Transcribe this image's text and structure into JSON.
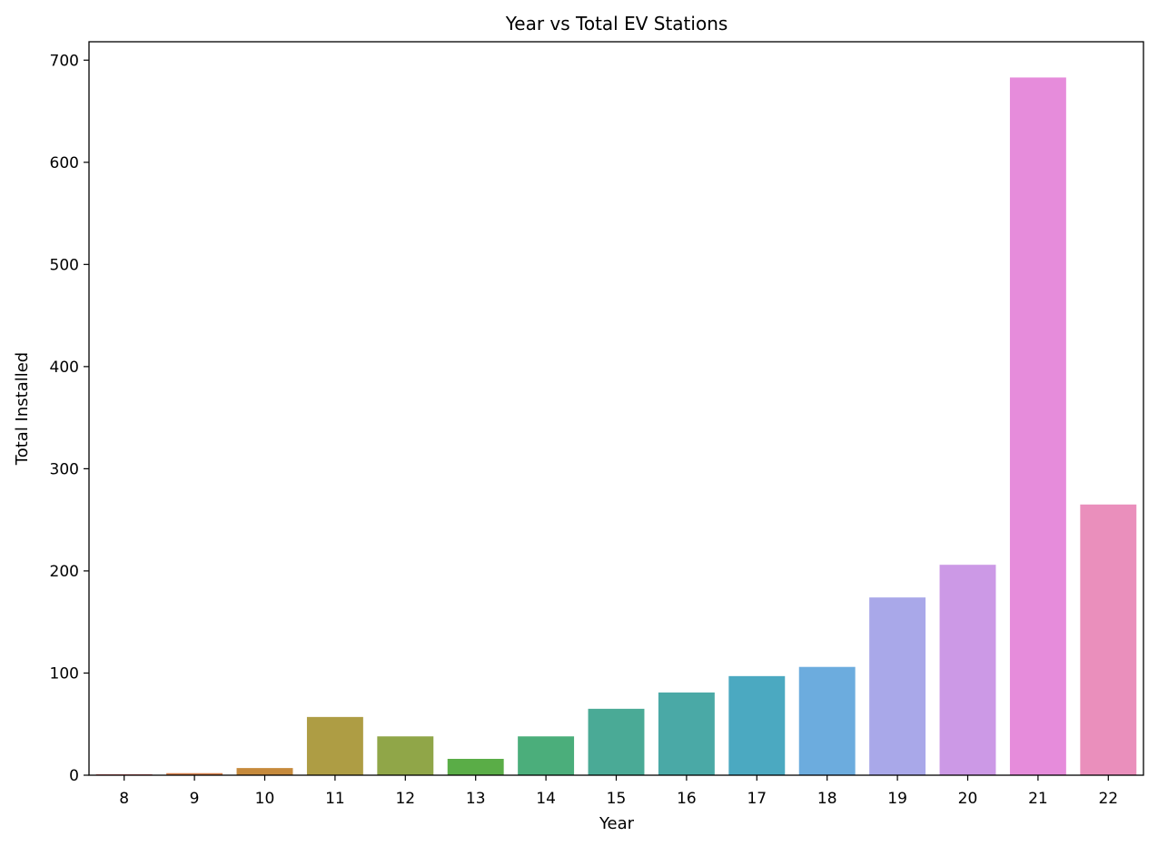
{
  "chart_data": {
    "type": "bar",
    "title": "Year vs Total EV Stations",
    "xlabel": "Year",
    "ylabel": "Total Installed",
    "categories": [
      "8",
      "9",
      "10",
      "11",
      "12",
      "13",
      "14",
      "15",
      "16",
      "17",
      "18",
      "19",
      "20",
      "21",
      "22"
    ],
    "values": [
      1,
      2,
      7,
      57,
      38,
      16,
      38,
      65,
      81,
      97,
      106,
      174,
      206,
      683,
      265
    ],
    "ylim": [
      0,
      718
    ],
    "yticks": [
      0,
      100,
      200,
      300,
      400,
      500,
      600,
      700
    ],
    "colors": [
      "#e8787a",
      "#d67f4a",
      "#c68a3c",
      "#ae9d44",
      "#90a648",
      "#5aad47",
      "#4bae7b",
      "#4aaa96",
      "#4aa9a6",
      "#4ba9c1",
      "#6cacde",
      "#a9a8e9",
      "#cc99e6",
      "#e68cdb",
      "#ea8fbc"
    ],
    "grid": false,
    "legend": "none"
  }
}
